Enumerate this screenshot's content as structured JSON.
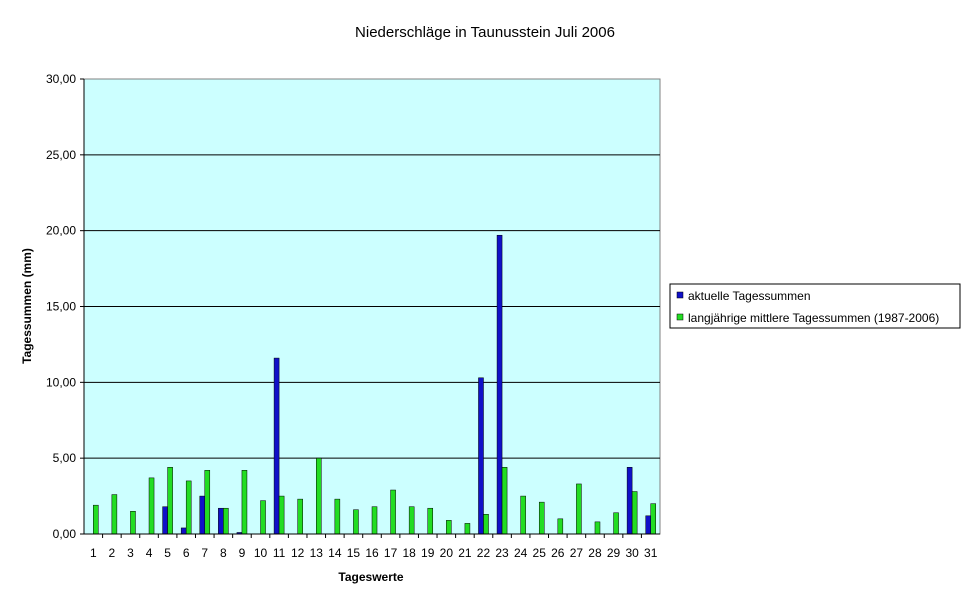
{
  "chart_data": {
    "type": "bar",
    "title": "Niederschläge in Taunusstein  Juli  2006",
    "xlabel": "Tageswerte",
    "ylabel": "Tagessummen (mm)",
    "ylim": [
      0,
      30
    ],
    "y_ticks": [
      "0,00",
      "5,00",
      "10,00",
      "15,00",
      "20,00",
      "25,00",
      "30,00"
    ],
    "grid": true,
    "legend_position": "right",
    "categories": [
      "1",
      "2",
      "3",
      "4",
      "5",
      "6",
      "7",
      "8",
      "9",
      "10",
      "11",
      "12",
      "13",
      "14",
      "15",
      "16",
      "17",
      "18",
      "19",
      "20",
      "21",
      "22",
      "23",
      "24",
      "25",
      "26",
      "27",
      "28",
      "29",
      "30",
      "31"
    ],
    "series": [
      {
        "name": "aktuelle Tagessummen",
        "color": "#1010c8",
        "values": [
          0,
          0,
          0,
          0,
          1.8,
          0.4,
          2.5,
          1.7,
          0.1,
          0,
          11.6,
          0,
          0,
          0,
          0,
          0,
          0,
          0,
          0,
          0,
          0,
          10.3,
          19.7,
          0,
          0,
          0,
          0,
          0,
          0,
          4.4,
          1.2
        ]
      },
      {
        "name": "langjährige mittlere Tagessummen (1987-2006)",
        "color": "#22dd22",
        "values": [
          1.9,
          2.6,
          1.5,
          3.7,
          4.4,
          3.5,
          4.2,
          1.7,
          4.2,
          2.2,
          2.5,
          2.3,
          5.0,
          2.3,
          1.6,
          1.8,
          2.9,
          1.8,
          1.7,
          0.9,
          0.7,
          1.3,
          4.4,
          2.5,
          2.1,
          1.0,
          3.3,
          0.8,
          1.4,
          2.8,
          2.0
        ]
      }
    ],
    "plot_background": "#ccffff"
  }
}
